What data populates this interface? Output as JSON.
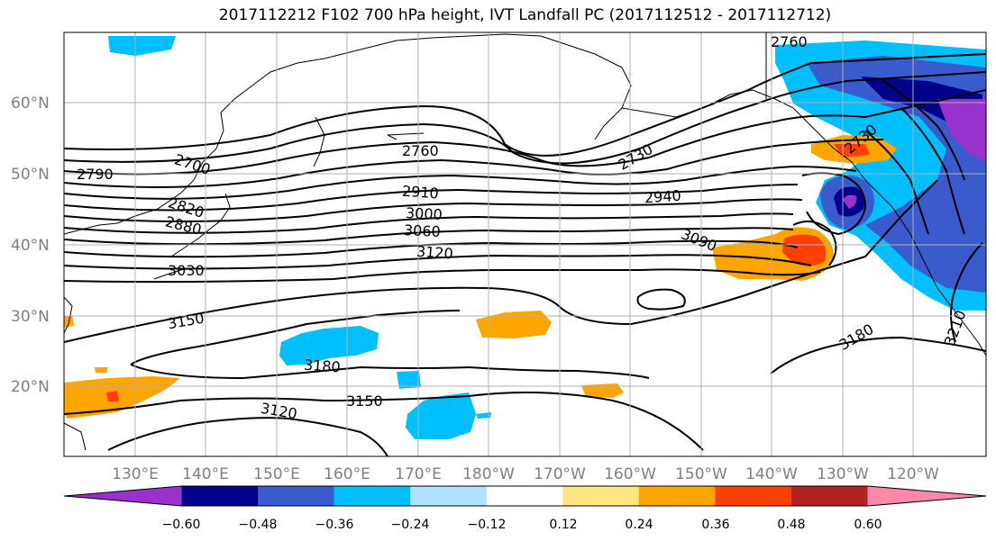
{
  "title": "2017112212 F102 700 hPa height, IVT Landfall PC (2017112512 - 2017112712)",
  "lat_labels": [
    "60°N",
    "50°N",
    "40°N",
    "30°N",
    "20°N"
  ],
  "lon_labels": [
    "130°E",
    "140°E",
    "150°E",
    "160°E",
    "170°E",
    "180°W",
    "170°W",
    "160°W",
    "150°W",
    "140°W",
    "130°W",
    "120°W"
  ],
  "contour_labels": [
    "2790",
    "2700",
    "2820",
    "2880",
    "3030",
    "3150",
    "2760",
    "2910",
    "3000",
    "3060",
    "3120",
    "3180",
    "3150",
    "3120",
    "2730",
    "2940",
    "3090",
    "2760",
    "2730",
    "3180",
    "3210"
  ],
  "colorbar": {
    "ticks": [
      "−0.60",
      "−0.48",
      "−0.36",
      "−0.24",
      "−0.12",
      "0.12",
      "0.24",
      "0.36",
      "0.48",
      "0.60"
    ],
    "colors": [
      "#9932cc",
      "#00008b",
      "#3a5bcc",
      "#00bfff",
      "#b0e2ff",
      "#ffffff",
      "#ffe680",
      "#ffa500",
      "#ff4000",
      "#b22222",
      "#ff88aa"
    ]
  }
}
